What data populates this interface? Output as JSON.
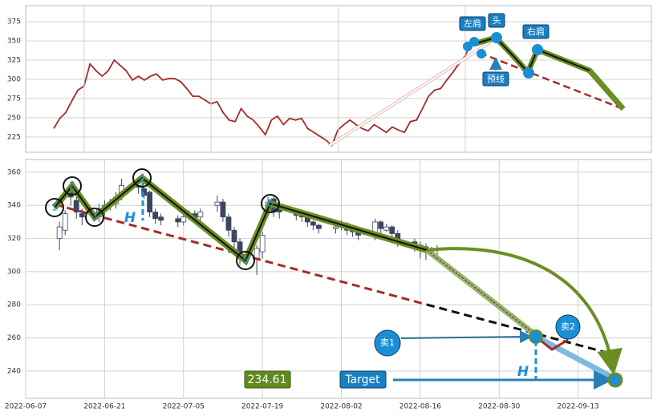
{
  "chart_data": [
    {
      "type": "line",
      "color": "#a52a2a",
      "values": [
        236,
        249,
        257,
        272,
        286,
        291,
        320,
        311,
        304,
        311,
        325,
        318,
        311,
        299,
        304,
        299,
        304,
        307,
        299,
        301,
        301,
        297,
        288,
        278,
        278,
        273,
        268,
        271,
        257,
        247,
        245,
        262,
        252,
        247,
        238,
        228,
        247,
        252,
        241,
        249,
        247,
        249,
        236,
        231,
        226,
        221,
        214,
        234,
        241,
        247,
        241,
        236,
        233,
        241,
        236,
        231,
        238,
        234,
        231,
        245,
        247,
        262,
        278,
        286,
        288,
        299,
        309,
        320,
        330,
        346
      ],
      "ylim": [
        205,
        396
      ],
      "yticks": [
        225,
        250,
        275,
        300,
        325,
        350,
        375
      ],
      "grid": true,
      "annotations": [
        "左肩",
        "头",
        "右肩",
        "预线"
      ]
    },
    {
      "type": "candlestick",
      "x": [
        "2022-06-13",
        "2022-06-14",
        "2022-06-15",
        "2022-06-16",
        "2022-06-17",
        "2022-06-20",
        "2022-06-21",
        "2022-06-22",
        "2022-06-23",
        "2022-06-24",
        "2022-06-27",
        "2022-06-28",
        "2022-06-29",
        "2022-06-30",
        "2022-07-01",
        "2022-07-04",
        "2022-07-05",
        "2022-07-06",
        "2022-07-07",
        "2022-07-08",
        "2022-07-11",
        "2022-07-12",
        "2022-07-13",
        "2022-07-14",
        "2022-07-15",
        "2022-07-18",
        "2022-07-19",
        "2022-07-20",
        "2022-07-21",
        "2022-07-22",
        "2022-07-25",
        "2022-07-26",
        "2022-07-27",
        "2022-07-28",
        "2022-07-29",
        "2022-08-01",
        "2022-08-02",
        "2022-08-03",
        "2022-08-04",
        "2022-08-05",
        "2022-08-08",
        "2022-08-09",
        "2022-08-10",
        "2022-08-11",
        "2022-08-12",
        "2022-08-15",
        "2022-08-16",
        "2022-08-17",
        "2022-08-18",
        "2022-08-19"
      ],
      "open": [
        320,
        325,
        348,
        343,
        335,
        333,
        338,
        340,
        341,
        345,
        352,
        350,
        348,
        336,
        333,
        332,
        330,
        333,
        335,
        333,
        340,
        342,
        333,
        325,
        318,
        308,
        312,
        338,
        344,
        338,
        337,
        335,
        334,
        330,
        328,
        326,
        327,
        329,
        325,
        324,
        322,
        330,
        325,
        327,
        323,
        318,
        316,
        315,
        312,
        313
      ],
      "high": [
        330,
        337,
        352,
        345,
        338,
        341,
        343,
        344,
        348,
        356,
        356,
        352,
        349,
        338,
        335,
        334,
        336,
        337,
        337,
        338,
        346,
        344,
        335,
        327,
        320,
        316,
        324,
        345,
        346,
        339,
        338,
        336,
        335,
        331,
        329,
        329,
        331,
        330,
        327,
        325,
        332,
        331,
        329,
        328,
        325,
        320,
        318,
        317,
        315,
        316
      ],
      "low": [
        313,
        322,
        340,
        332,
        328,
        330,
        334,
        337,
        338,
        343,
        347,
        344,
        333,
        329,
        328,
        327,
        328,
        331,
        329,
        330,
        336,
        330,
        321,
        313,
        304,
        298,
        308,
        335,
        333,
        332,
        331,
        330,
        327,
        325,
        323,
        323,
        325,
        322,
        321,
        319,
        319,
        322,
        324,
        320,
        315,
        312,
        308,
        307,
        309,
        310
      ],
      "close": [
        327,
        335,
        345,
        336,
        333,
        338,
        340,
        341,
        345,
        352,
        351,
        346,
        336,
        332,
        331,
        330,
        333,
        335,
        331,
        336,
        342,
        333,
        325,
        318,
        308,
        314,
        322,
        342,
        336,
        336,
        334,
        333,
        330,
        328,
        326,
        327,
        329,
        325,
        324,
        322,
        330,
        326,
        327,
        323,
        318,
        316,
        313,
        312,
        313,
        314
      ],
      "up_color": "#ffffff",
      "down_color": "#3b4660",
      "xlim": [
        "2022-06-07",
        "2022-09-26"
      ],
      "xticks": [
        "2022-06-07",
        "2022-06-21",
        "2022-07-05",
        "2022-07-19",
        "2022-08-02",
        "2022-08-16",
        "2022-08-30",
        "2022-09-13"
      ],
      "ylim": [
        223.5,
        367.7
      ],
      "yticks": [
        240,
        260,
        280,
        300,
        320,
        340,
        360
      ],
      "grid": true,
      "points": [
        "1",
        "2",
        "3",
        "4",
        "5",
        "6"
      ],
      "annotations": [
        "H",
        "H",
        "卖1",
        "卖2",
        "Target",
        "234.61"
      ]
    }
  ]
}
